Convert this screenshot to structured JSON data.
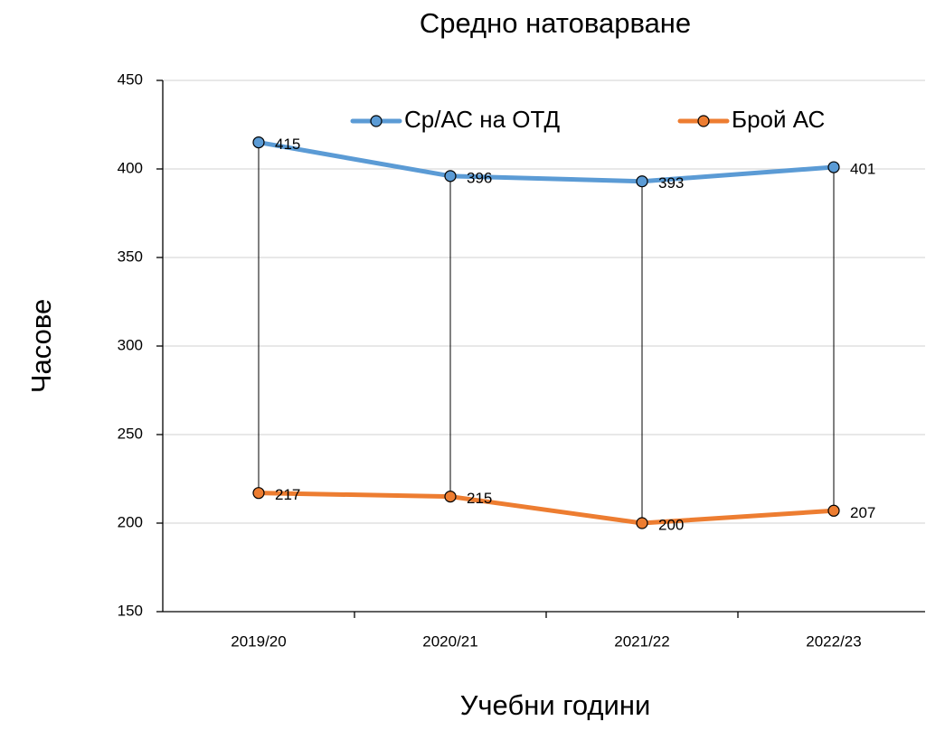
{
  "chart_data": {
    "type": "line",
    "title": "Средно натоварване",
    "x_label": "Учебни години",
    "y_label": "Часове",
    "categories": [
      "2019/20",
      "2020/21",
      "2021/22",
      "2022/23"
    ],
    "series": [
      {
        "name": "Ср/АС на ОТД",
        "color": "#5b9bd5",
        "values": [
          415,
          396,
          393,
          401
        ]
      },
      {
        "name": "Брой АС",
        "color": "#ed7d31",
        "values": [
          217,
          215,
          200,
          207
        ]
      }
    ],
    "ylim": [
      150,
      450
    ],
    "yticks": [
      150,
      200,
      250,
      300,
      350,
      400,
      450
    ],
    "grid": true,
    "drop_lines": true,
    "legend": "top"
  }
}
